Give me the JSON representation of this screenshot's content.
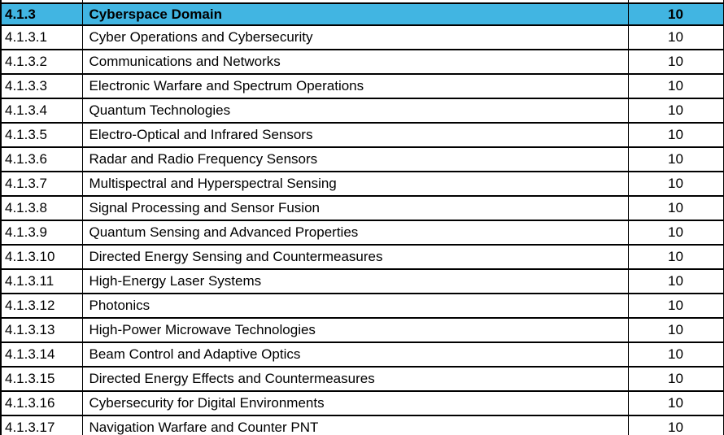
{
  "colors": {
    "header_bg": "#41b5e2",
    "border": "#000000",
    "text": "#000000"
  },
  "table": {
    "header": {
      "code": "4.1.3",
      "name": "Cyberspace Domain",
      "value": "10"
    },
    "rows": [
      {
        "code": "4.1.3.1",
        "name": "Cyber Operations and Cybersecurity",
        "value": "10"
      },
      {
        "code": "4.1.3.2",
        "name": "Communications and Networks",
        "value": "10"
      },
      {
        "code": "4.1.3.3",
        "name": "Electronic Warfare and Spectrum Operations",
        "value": "10"
      },
      {
        "code": "4.1.3.4",
        "name": "Quantum Technologies",
        "value": "10"
      },
      {
        "code": "4.1.3.5",
        "name": "Electro-Optical and Infrared Sensors",
        "value": "10"
      },
      {
        "code": "4.1.3.6",
        "name": "Radar and Radio Frequency Sensors",
        "value": "10"
      },
      {
        "code": "4.1.3.7",
        "name": "Multispectral and Hyperspectral Sensing",
        "value": "10"
      },
      {
        "code": "4.1.3.8",
        "name": "Signal Processing and Sensor Fusion",
        "value": "10"
      },
      {
        "code": "4.1.3.9",
        "name": "Quantum Sensing and Advanced Properties",
        "value": "10"
      },
      {
        "code": "4.1.3.10",
        "name": "Directed Energy Sensing and Countermeasures",
        "value": "10"
      },
      {
        "code": "4.1.3.11",
        "name": "High-Energy Laser Systems",
        "value": "10"
      },
      {
        "code": "4.1.3.12",
        "name": "Photonics",
        "value": "10"
      },
      {
        "code": "4.1.3.13",
        "name": "High-Power Microwave Technologies",
        "value": "10"
      },
      {
        "code": "4.1.3.14",
        "name": "Beam Control and Adaptive Optics",
        "value": "10"
      },
      {
        "code": "4.1.3.15",
        "name": "Directed Energy Effects and Countermeasures",
        "value": "10"
      },
      {
        "code": "4.1.3.16",
        "name": "Cybersecurity for Digital Environments",
        "value": "10"
      },
      {
        "code": "4.1.3.17",
        "name": "Navigation Warfare and Counter PNT",
        "value": "10"
      }
    ]
  }
}
